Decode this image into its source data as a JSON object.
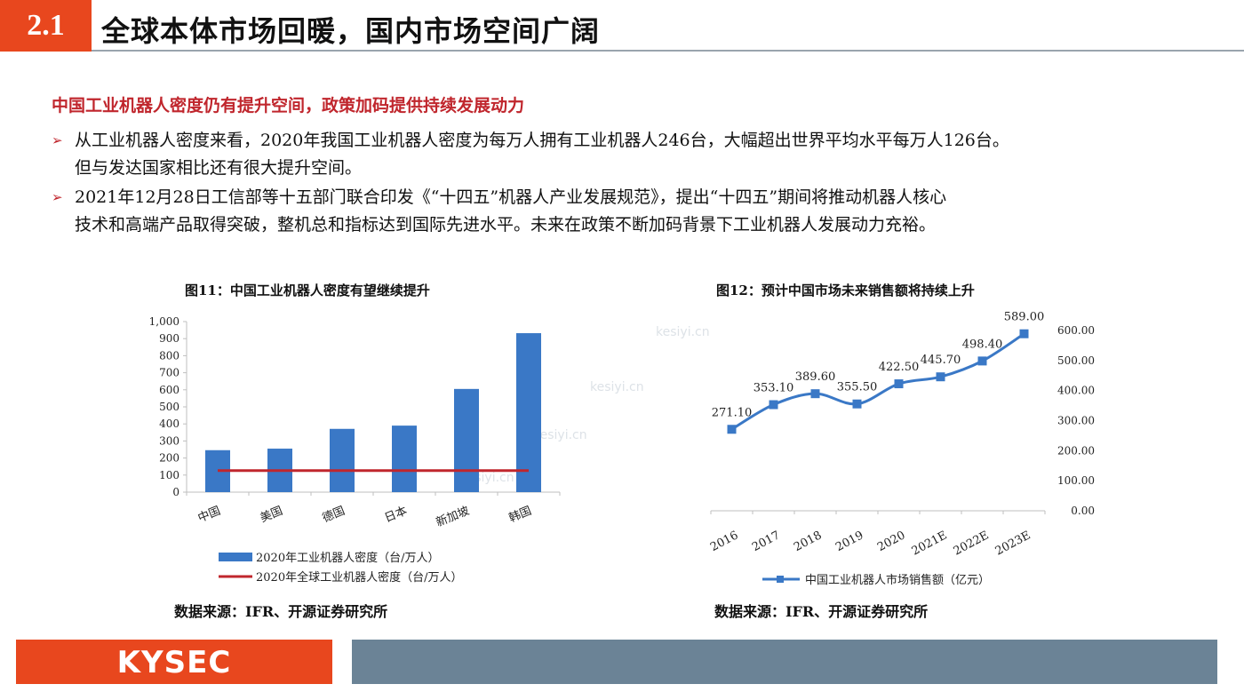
{
  "header": {
    "section_number": "2.1",
    "title": "全球本体市场回暖，国内市场空间广阔"
  },
  "subheading": "中国工业机器人密度仍有提升空间，政策加码提供持续发展动力",
  "bullets": [
    {
      "line1": "从工业机器人密度来看，2020年我国工业机器人密度为每万人拥有工业机器人246台，大幅超出世界平均水平每万人126台。",
      "line2": "但与发达国家相比还有很大提升空间。"
    },
    {
      "line1": "2021年12月28日工信部等十五部门联合印发《“十四五”机器人产业发展规范》，提出“十四五”期间将推动机器人核心",
      "line2": "技术和高端产品取得突破，整机总和指标达到国际先进水平。未来在政策不断加码背景下工业机器人发展动力充裕。"
    }
  ],
  "figures": [
    {
      "title": "图11：中国工业机器人密度有望继续提升",
      "source": "数据来源：IFR、开源证券研究所"
    },
    {
      "title": "图12：预计中国市场未来销售额将持续上升",
      "source": "数据来源：IFR、开源证券研究所"
    }
  ],
  "watermark": "kesiyi.cn",
  "footer": {
    "logo": "KYSEC"
  },
  "chart_data": [
    {
      "type": "bar",
      "categories": [
        "中国",
        "美国",
        "德国",
        "日本",
        "新加坡",
        "韩国"
      ],
      "series": [
        {
          "name": "2020年工业机器人密度（台/万人）",
          "type": "bar",
          "color": "#3a78c6",
          "values": [
            246,
            255,
            371,
            390,
            605,
            932
          ]
        },
        {
          "name": "2020年全球工业机器人密度（台/万人）",
          "type": "line",
          "color": "#c0262d",
          "values": [
            126,
            126,
            126,
            126,
            126,
            126
          ]
        }
      ],
      "yticks": [
        "0",
        "100",
        "200",
        "300",
        "400",
        "500",
        "600",
        "700",
        "800",
        "900",
        "1,000"
      ],
      "ylim": [
        0,
        1000
      ],
      "legend_position": "bottom"
    },
    {
      "type": "line",
      "categories": [
        "2016",
        "2017",
        "2018",
        "2019",
        "2020",
        "2021E",
        "2022E",
        "2023E"
      ],
      "series": [
        {
          "name": "中国工业机器人市场销售额（亿元）",
          "color": "#3a78c6",
          "values": [
            271.1,
            353.1,
            389.6,
            355.5,
            422.5,
            445.7,
            498.4,
            589.0
          ],
          "labels": [
            "271.10",
            "353.10",
            "389.60",
            "355.50",
            "422.50",
            "445.70",
            "498.40",
            "589.00"
          ]
        }
      ],
      "yticks": [
        "0.00",
        "100.00",
        "200.00",
        "300.00",
        "400.00",
        "500.00",
        "600.00"
      ],
      "ylim": [
        0,
        600
      ],
      "y_axis_side": "right",
      "legend_position": "bottom"
    }
  ]
}
